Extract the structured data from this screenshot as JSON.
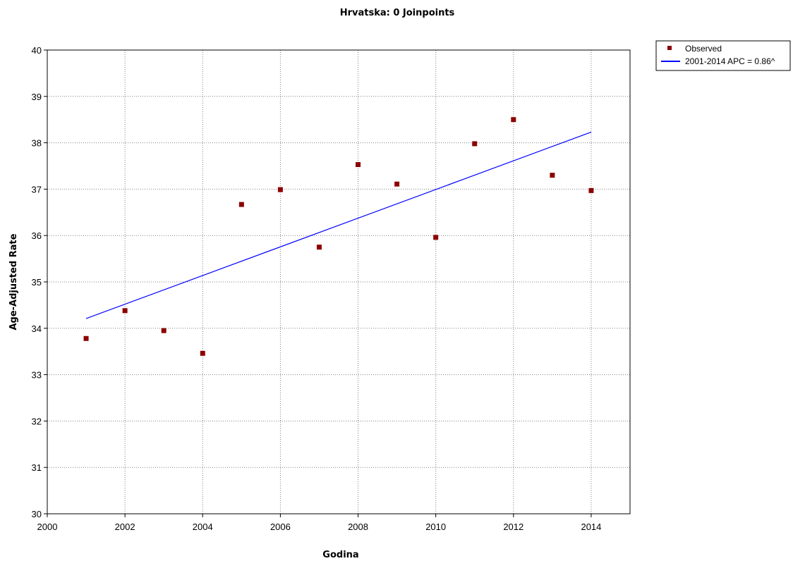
{
  "chart_data": {
    "type": "scatter",
    "title": "Hrvatska: 0 Joinpoints",
    "xlabel": "Godina",
    "ylabel": "Age-Adjusted Rate",
    "xlim": [
      2000,
      2015
    ],
    "ylim": [
      30,
      40
    ],
    "x_ticks": [
      2000,
      2002,
      2004,
      2006,
      2008,
      2010,
      2012,
      2014
    ],
    "y_ticks": [
      30,
      31,
      32,
      33,
      34,
      35,
      36,
      37,
      38,
      39,
      40
    ],
    "grid": true,
    "legend_position": "top-right outside",
    "series": [
      {
        "name": "Observed",
        "kind": "markers",
        "color": "#8b0000",
        "x": [
          2001,
          2002,
          2003,
          2004,
          2005,
          2006,
          2007,
          2008,
          2009,
          2010,
          2011,
          2012,
          2013,
          2014
        ],
        "y": [
          33.78,
          34.38,
          33.95,
          33.46,
          36.67,
          36.99,
          35.75,
          37.53,
          37.11,
          35.96,
          37.98,
          38.5,
          37.3,
          36.97
        ]
      },
      {
        "name": "2001-2014 APC  = 0.86^",
        "kind": "line",
        "color": "#0000ff",
        "x": [
          2001,
          2014
        ],
        "y": [
          34.21,
          38.23
        ]
      }
    ]
  }
}
